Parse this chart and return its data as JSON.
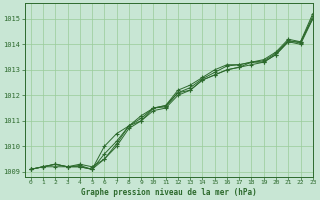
{
  "title": "Graphe pression niveau de la mer (hPa)",
  "xlim": [
    -0.5,
    23
  ],
  "ylim": [
    1008.8,
    1015.6
  ],
  "xticks": [
    0,
    1,
    2,
    3,
    4,
    5,
    6,
    7,
    8,
    9,
    10,
    11,
    12,
    13,
    14,
    15,
    16,
    17,
    18,
    19,
    20,
    21,
    22,
    23
  ],
  "yticks": [
    1009,
    1010,
    1011,
    1012,
    1013,
    1014,
    1015
  ],
  "bg_color": "#c8e6d4",
  "grid_color": "#99cc99",
  "line_color": "#2d6a2d",
  "marker": "+",
  "series": [
    [
      1009.1,
      1009.2,
      1009.3,
      1009.2,
      1009.3,
      1009.2,
      1009.5,
      1010.0,
      1010.7,
      1011.0,
      1011.5,
      1011.6,
      1012.1,
      1012.2,
      1012.6,
      1012.8,
      1013.0,
      1013.1,
      1013.2,
      1013.3,
      1013.6,
      1014.1,
      1014.0,
      1015.0
    ],
    [
      1009.1,
      1009.2,
      1009.3,
      1009.2,
      1009.2,
      1009.1,
      1010.0,
      1010.5,
      1010.8,
      1011.2,
      1011.5,
      1011.6,
      1012.2,
      1012.4,
      1012.7,
      1013.0,
      1013.2,
      1013.2,
      1013.3,
      1013.4,
      1013.7,
      1014.2,
      1014.1,
      1015.2
    ],
    [
      1009.1,
      1009.2,
      1009.2,
      1009.2,
      1009.25,
      1009.1,
      1009.5,
      1010.1,
      1010.8,
      1011.0,
      1011.4,
      1011.5,
      1012.0,
      1012.2,
      1012.6,
      1012.8,
      1013.0,
      1013.1,
      1013.3,
      1013.3,
      1013.6,
      1014.1,
      1014.1,
      1015.0
    ],
    [
      1009.1,
      1009.2,
      1009.3,
      1009.2,
      1009.2,
      1009.1,
      1009.7,
      1010.2,
      1010.8,
      1011.1,
      1011.5,
      1011.55,
      1012.1,
      1012.3,
      1012.65,
      1012.9,
      1013.15,
      1013.2,
      1013.3,
      1013.35,
      1013.65,
      1014.15,
      1014.05,
      1015.1
    ]
  ]
}
